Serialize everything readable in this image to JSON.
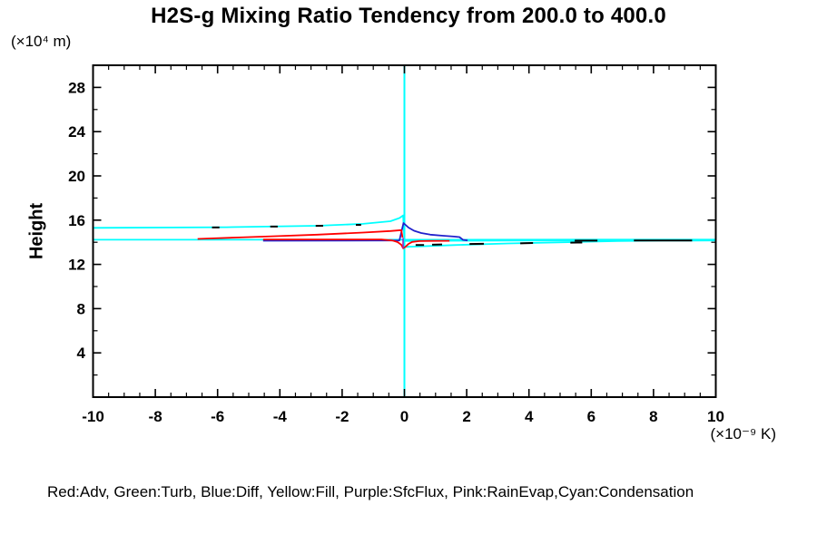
{
  "colors": {
    "background": "#FFFFFF",
    "axis": "#000000",
    "red": "#FF0000",
    "blue": "#2121CC",
    "cyan": "#00FFFF",
    "purple": "#A020C0",
    "dashed": "#000000"
  },
  "chart_data": {
    "type": "line",
    "title": "H2S-g Mixing Ratio Tendency from 200.0 to 400.0",
    "ylabel": "Height",
    "ylabel_unit": "(×10⁴ m)",
    "xlabel_unit": "(×10⁻⁹ K)",
    "legend_note": "Red:Adv, Green:Turb, Blue:Diff, Yellow:Fill, Purple:SfcFlux, Pink:RainEvap,Cyan:Condensation",
    "xlim": [
      -10,
      10
    ],
    "ylim": [
      0,
      30
    ],
    "x_major_ticks": [
      -10,
      -8,
      -6,
      -4,
      -2,
      0,
      2,
      4,
      6,
      8,
      10
    ],
    "x_minor_step": 0.5,
    "y_major_ticks": [
      4,
      8,
      12,
      16,
      20,
      24,
      28
    ],
    "y_minor_step": 2,
    "grid": false,
    "series": [
      {
        "name": "condensation-zero-line",
        "legend": "Cyan:Condensation",
        "color": "#00FFFF",
        "width": 2,
        "points": [
          [
            0,
            30
          ],
          [
            0,
            0
          ]
        ]
      },
      {
        "name": "condensation-upper-branch",
        "legend": "Cyan:Condensation",
        "color": "#00FFFF",
        "width": 1.8,
        "points": [
          [
            -10,
            15.3
          ],
          [
            -5.71,
            15.36
          ],
          [
            -2.79,
            15.49
          ],
          [
            -1.33,
            15.66
          ],
          [
            -0.45,
            15.9
          ],
          [
            -0.16,
            16.19
          ],
          [
            -0.04,
            16.43
          ],
          [
            0,
            14.12
          ],
          [
            10,
            14.21
          ]
        ]
      },
      {
        "name": "condensation-mid-branch",
        "legend": "Cyan:Condensation",
        "color": "#00FFFF",
        "width": 1.8,
        "points": [
          [
            -10,
            14.23
          ],
          [
            10,
            14.24
          ]
        ]
      },
      {
        "name": "condensation-lower-branch",
        "legend": "Cyan:Condensation",
        "color": "#00FFFF",
        "width": 1.8,
        "points": [
          [
            -0.01,
            13.57
          ],
          [
            1.59,
            13.75
          ],
          [
            3.34,
            13.89
          ],
          [
            5.09,
            14.0
          ],
          [
            6.85,
            14.11
          ],
          [
            8.31,
            14.15
          ],
          [
            10,
            14.16
          ]
        ]
      },
      {
        "name": "diff-profile",
        "legend": "Blue:Diff",
        "color": "#2121CC",
        "width": 1.8,
        "points": [
          [
            -4.54,
            14.14
          ],
          [
            -0.16,
            14.16
          ],
          [
            -0.03,
            15.74
          ],
          [
            0.13,
            15.33
          ],
          [
            0.31,
            15.04
          ],
          [
            0.54,
            14.84
          ],
          [
            0.83,
            14.69
          ],
          [
            1.24,
            14.59
          ],
          [
            1.59,
            14.52
          ],
          [
            1.77,
            14.47
          ],
          [
            1.88,
            14.22
          ],
          [
            2.03,
            14.16
          ]
        ]
      },
      {
        "name": "adv-profile-upper",
        "legend": "Red:Adv",
        "color": "#FF0000",
        "width": 1.8,
        "points": [
          [
            -6.64,
            14.3
          ],
          [
            -5.42,
            14.43
          ],
          [
            -4.25,
            14.54
          ],
          [
            -2.79,
            14.69
          ],
          [
            -1.33,
            14.88
          ],
          [
            -0.45,
            15.02
          ],
          [
            -0.1,
            15.1
          ],
          [
            -0.06,
            14.43
          ]
        ]
      },
      {
        "name": "adv-profile-lower",
        "legend": "Red:Adv",
        "color": "#FF0000",
        "width": 1.8,
        "points": [
          [
            -4.54,
            14.25
          ],
          [
            -0.74,
            14.25
          ],
          [
            -0.39,
            14.16
          ],
          [
            -0.22,
            14.02
          ],
          [
            -0.1,
            13.77
          ],
          [
            -0.04,
            13.46
          ],
          [
            0.03,
            13.57
          ],
          [
            0.13,
            13.85
          ],
          [
            0.25,
            14.03
          ],
          [
            0.48,
            14.11
          ],
          [
            0.86,
            14.12
          ],
          [
            1.45,
            14.13
          ]
        ]
      },
      {
        "name": "sfcflux-profile",
        "legend": "Purple:SfcFlux",
        "color": "#A020C0",
        "width": 1.6,
        "points": [
          [
            -0.044,
            14.39
          ],
          [
            -0.044,
            13.44
          ]
        ]
      }
    ],
    "dashed_segments": [
      {
        "x1": -6.18,
        "h1": 15.34,
        "x2": -5.94,
        "h2": 15.34
      },
      {
        "x1": -4.31,
        "h1": 15.42,
        "x2": -4.07,
        "h2": 15.42
      },
      {
        "x1": -2.85,
        "h1": 15.48,
        "x2": -2.61,
        "h2": 15.49
      },
      {
        "x1": -1.56,
        "h1": 15.57,
        "x2": -1.39,
        "h2": 15.57
      },
      {
        "x1": 0.36,
        "h1": 13.75,
        "x2": 0.63,
        "h2": 13.75
      },
      {
        "x1": 0.89,
        "h1": 13.78,
        "x2": 1.21,
        "h2": 13.8
      },
      {
        "x1": 2.09,
        "h1": 13.84,
        "x2": 2.55,
        "h2": 13.86
      },
      {
        "x1": 3.72,
        "h1": 13.9,
        "x2": 4.13,
        "h2": 13.93
      },
      {
        "x1": 5.33,
        "h1": 13.97,
        "x2": 5.71,
        "h2": 13.98
      },
      {
        "x1": 5.47,
        "h1": 14.15,
        "x2": 6.2,
        "h2": 14.15
      },
      {
        "x1": 7.37,
        "h1": 14.16,
        "x2": 9.24,
        "h2": 14.16
      }
    ]
  }
}
